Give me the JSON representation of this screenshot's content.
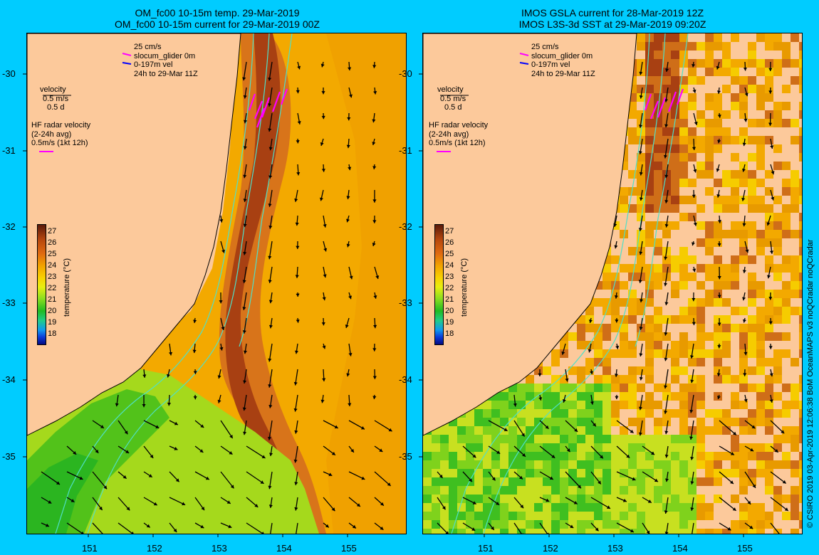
{
  "left_panel": {
    "title_line1": "OM_fc00 10-15m temp. 29-Mar-2019",
    "title_line2": "OM_fc00 10-15m current for 29-Mar-2019 00Z"
  },
  "right_panel": {
    "title_line1": "IMOS GSLA current for 28-Mar-2019 12Z",
    "title_line2": "IMOS L3S-3d SST at 29-Mar-2019 09:20Z"
  },
  "legend": {
    "glider_scale": "25 cm/s",
    "glider_series": "slocum_glider 0m",
    "vel_series": "0-197m vel",
    "time_window": "24h to 29-Mar 11Z",
    "velocity_label": "velocity",
    "velocity_speed": "0.5 m/s",
    "velocity_days": "0.5 d",
    "hf_label": "HF radar velocity",
    "hf_avg": "(2-24h avg)",
    "hf_scale": "0.5m/s (1kt 12h)"
  },
  "colorbar": {
    "title": "temperature (°C)",
    "ticks": [
      "27",
      "26",
      "25",
      "24",
      "23",
      "22",
      "21",
      "20",
      "19",
      "18"
    ]
  },
  "axes": {
    "y_ticks": [
      "-30",
      "-31",
      "-32",
      "-33",
      "-34",
      "-35"
    ],
    "x_ticks": [
      "151",
      "152",
      "153",
      "154",
      "155"
    ]
  },
  "credit": "© CSIRO 2019   03-Apr-2019 12:06:38 BoM OceanMAPS v3 noQCradar noQCradar",
  "colors": {
    "background": "#00ccff",
    "land": "#fcc99b",
    "warm_current": "#c0501a",
    "shelf_water": "#9ad41e",
    "isobath": "#4fe0c8",
    "glider": "#ff00ff"
  }
}
